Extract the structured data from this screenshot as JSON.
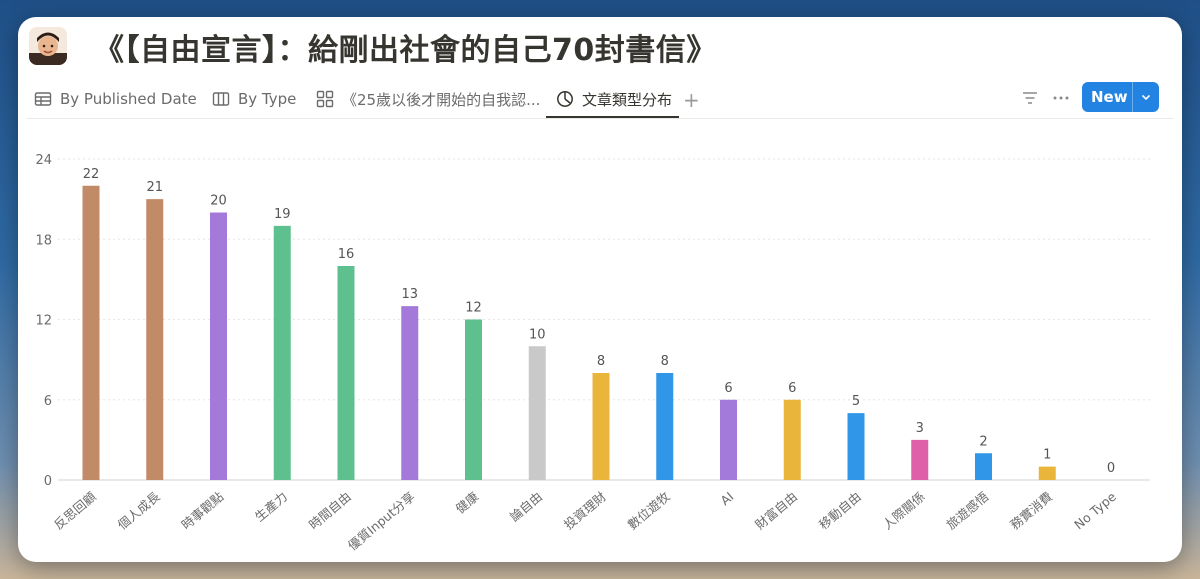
{
  "page": {
    "title": "《【自由宣言】：給剛出社會的自己70封書信》"
  },
  "tabs": [
    {
      "label": "By Published Date",
      "icon": "table-icon"
    },
    {
      "label": "By Type",
      "icon": "board-icon"
    },
    {
      "label": "《25歲以後才開始的自我認...",
      "icon": "gallery-icon"
    },
    {
      "label": "文章類型分布",
      "icon": "chart-icon",
      "active": true
    }
  ],
  "toolbar": {
    "new_label": "New",
    "accent": "#2383e2"
  },
  "chart_data": {
    "type": "bar",
    "categories": [
      "反思回顧",
      "個人成長",
      "時事觀點",
      "生產力",
      "時間自由",
      "優質Input分享",
      "健康",
      "論自由",
      "投資理財",
      "數位遊牧",
      "AI",
      "財富自由",
      "移動自由",
      "人際關係",
      "旅遊感悟",
      "務實消費",
      "No Type"
    ],
    "values": [
      22,
      21,
      20,
      19,
      16,
      13,
      12,
      10,
      8,
      8,
      6,
      6,
      5,
      3,
      2,
      1,
      0
    ],
    "colors": [
      "#c28b68",
      "#c28b68",
      "#a37ad9",
      "#5fc08f",
      "#5fc08f",
      "#a37ad9",
      "#5fc08f",
      "#c9c9c9",
      "#e9b53a",
      "#2f96e8",
      "#a37ad9",
      "#e9b53a",
      "#2f96e8",
      "#df5fa8",
      "#2f96e8",
      "#e9b53a",
      "#c9c9c9"
    ],
    "yticks": [
      "0",
      "6",
      "12",
      "18",
      "24"
    ],
    "ylim": [
      0,
      24
    ],
    "grid": true
  }
}
